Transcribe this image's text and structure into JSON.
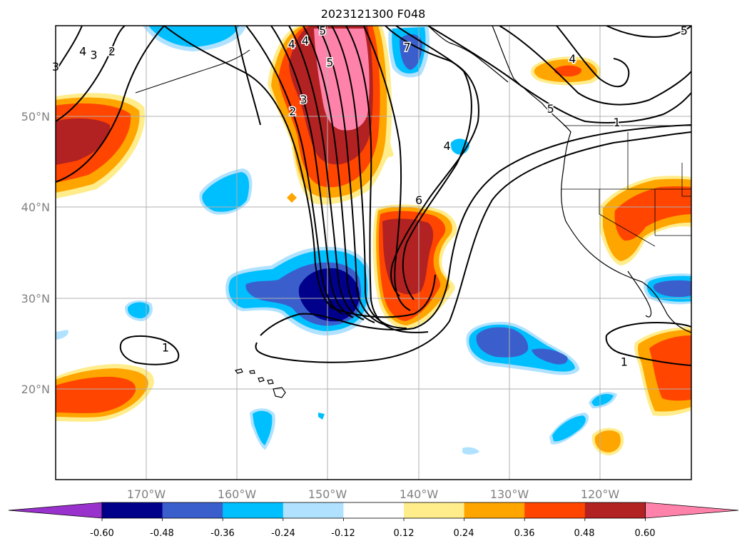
{
  "title": "2023121300 F048",
  "map": {
    "lon_range": [
      -180,
      -110
    ],
    "lat_range": [
      10,
      60
    ],
    "lon_ticks": [
      {
        "lon": -170,
        "label": "170°W"
      },
      {
        "lon": -160,
        "label": "160°W"
      },
      {
        "lon": -150,
        "label": "150°W"
      },
      {
        "lon": -140,
        "label": "140°W"
      },
      {
        "lon": -130,
        "label": "130°W"
      },
      {
        "lon": -120,
        "label": "120°W"
      }
    ],
    "lat_ticks": [
      {
        "lat": 20,
        "label": "20°N"
      },
      {
        "lat": 30,
        "label": "30°N"
      },
      {
        "lat": 40,
        "label": "40°N"
      },
      {
        "lat": 50,
        "label": "50°N"
      }
    ],
    "gridlines": true,
    "tick_label_color": "#808080",
    "contour_labels": [
      {
        "text": "3",
        "lon": -175.8,
        "lat": 56.8
      },
      {
        "text": "4",
        "lon": -177.0,
        "lat": 57.2
      },
      {
        "text": "2",
        "lon": -173.8,
        "lat": 57.2
      },
      {
        "text": "3",
        "lon": -180.0,
        "lat": 55.5
      },
      {
        "text": "2",
        "lon": -153.9,
        "lat": 50.6
      },
      {
        "text": "3",
        "lon": -152.7,
        "lat": 51.9
      },
      {
        "text": "5",
        "lon": -149.8,
        "lat": 56.0
      },
      {
        "text": "5",
        "lon": -150.6,
        "lat": 59.5
      },
      {
        "text": "4",
        "lon": -154.0,
        "lat": 58.0
      },
      {
        "text": "4",
        "lon": -152.5,
        "lat": 58.4
      },
      {
        "text": "7",
        "lon": -141.3,
        "lat": 57.7
      },
      {
        "text": "6",
        "lon": -140.0,
        "lat": 40.8
      },
      {
        "text": "4",
        "lon": -136.9,
        "lat": 46.8
      },
      {
        "text": "5",
        "lon": -125.5,
        "lat": 50.9
      },
      {
        "text": "4",
        "lon": -123.1,
        "lat": 56.4
      },
      {
        "text": "1",
        "lon": -118.2,
        "lat": 49.4
      },
      {
        "text": "5",
        "lon": -110.8,
        "lat": 59.5
      },
      {
        "text": "1",
        "lon": -167.9,
        "lat": 24.6
      },
      {
        "text": "1",
        "lon": -117.4,
        "lat": 23.0
      }
    ]
  },
  "colorbar": {
    "ticks": [
      "-0.60",
      "-0.48",
      "-0.36",
      "-0.24",
      "-0.12",
      "0.12",
      "0.24",
      "0.36",
      "0.48",
      "0.60"
    ],
    "colors": [
      "#9932cc",
      "#00008b",
      "#3a5fcd",
      "#00bfff",
      "#b0e2ff",
      "#ffffff",
      "#ffec8b",
      "#ffa500",
      "#ff4500",
      "#b22222",
      "#ff82ab"
    ],
    "extend": "both"
  }
}
